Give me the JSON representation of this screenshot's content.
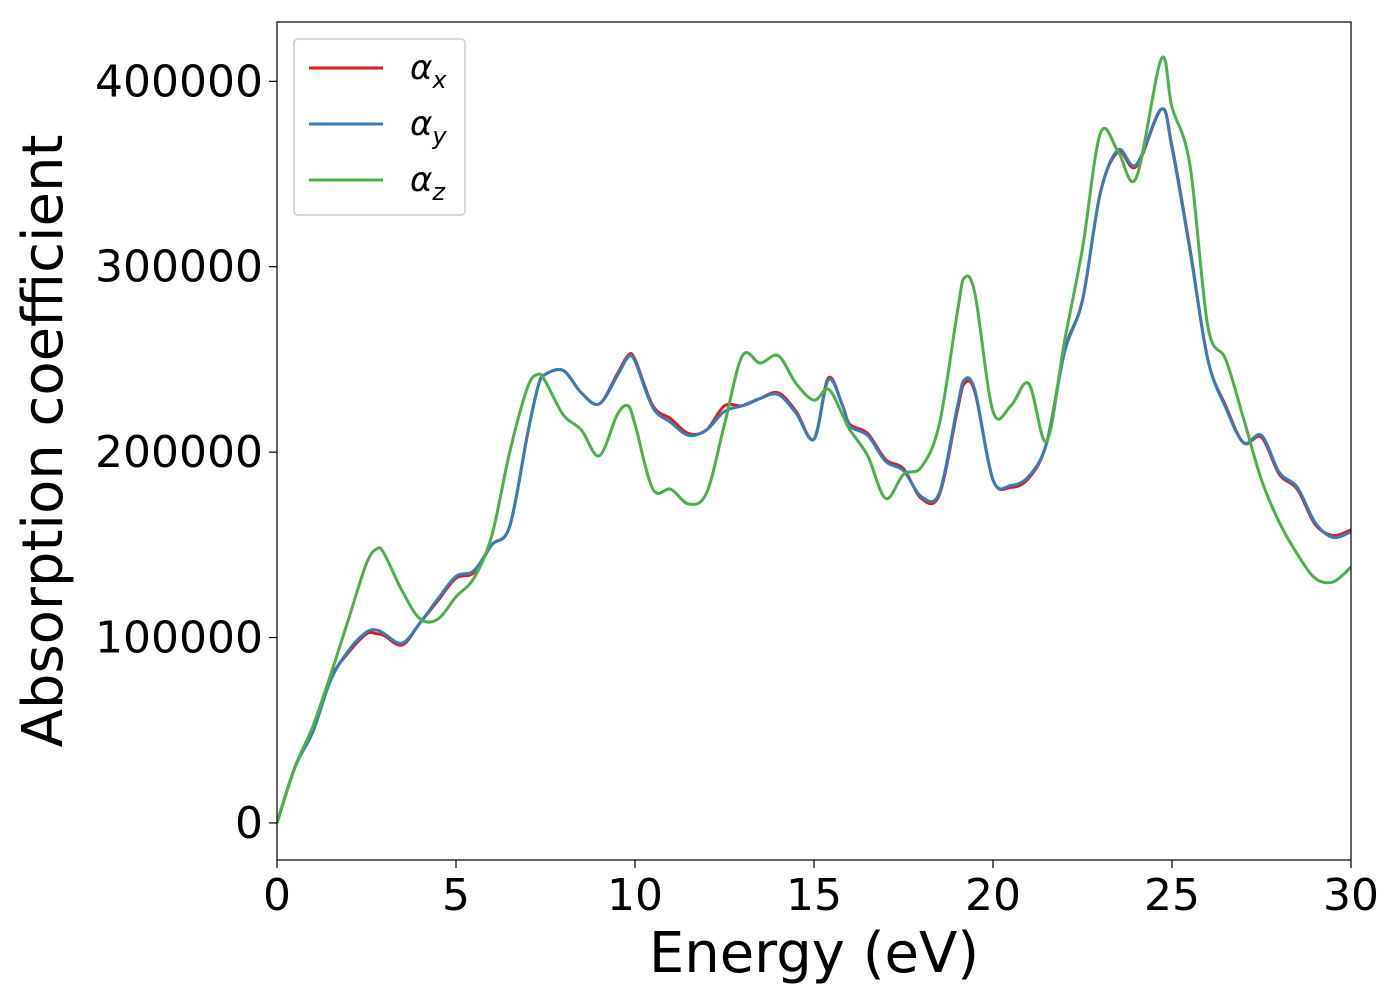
{
  "chart_data": {
    "type": "line",
    "title": "",
    "xlabel": "Energy (eV)",
    "ylabel": "Absorption coefficient",
    "xlim": [
      0,
      30
    ],
    "ylim": [
      -20000,
      432000
    ],
    "xticks": [
      0,
      5,
      10,
      15,
      20,
      25,
      30
    ],
    "yticks": [
      0,
      100000,
      200000,
      300000,
      400000
    ],
    "xtick_labels": [
      "0",
      "5",
      "10",
      "15",
      "20",
      "25",
      "30"
    ],
    "ytick_labels": [
      "0",
      "100000",
      "200000",
      "300000",
      "400000"
    ],
    "grid": false,
    "legend_position": "top-left",
    "x": [
      0,
      0.5,
      1,
      1.5,
      2,
      2.5,
      2.8,
      3,
      3.5,
      4,
      4.5,
      5,
      5.5,
      6,
      6.5,
      7,
      7.3,
      7.5,
      8,
      8.5,
      9,
      9.5,
      9.8,
      10,
      10.5,
      11,
      11.5,
      12,
      12.5,
      13,
      13.5,
      14,
      14.5,
      15,
      15.4,
      15.8,
      16,
      16.5,
      17,
      17.5,
      18,
      18.5,
      19,
      19.2,
      19.5,
      20,
      20.5,
      21,
      21.5,
      22,
      22.5,
      23,
      23.5,
      24,
      24.7,
      25,
      25.5,
      26,
      26.5,
      27,
      27.5,
      28,
      28.5,
      29,
      29.5,
      30
    ],
    "series": [
      {
        "name": "α",
        "subscript": "x",
        "color": "#e41a1c",
        "values": [
          0,
          30000,
          50000,
          78000,
          92000,
          102000,
          102000,
          101000,
          96000,
          108000,
          120000,
          132000,
          135000,
          150000,
          160000,
          210000,
          236000,
          242000,
          244000,
          232000,
          226000,
          242000,
          252000,
          250000,
          225000,
          218000,
          210000,
          212000,
          225000,
          225000,
          229000,
          232000,
          222000,
          207000,
          240000,
          225000,
          215000,
          210000,
          196000,
          191000,
          175000,
          177000,
          222000,
          237000,
          232000,
          185000,
          181000,
          186000,
          205000,
          255000,
          282000,
          340000,
          362000,
          354000,
          385000,
          365000,
          310000,
          250000,
          225000,
          205000,
          208000,
          188000,
          180000,
          161000,
          155000,
          158000
        ]
      },
      {
        "name": "α",
        "subscript": "y",
        "color": "#377eb8",
        "values": [
          0,
          30000,
          49000,
          77000,
          93000,
          103000,
          104000,
          102000,
          97000,
          108000,
          121000,
          133000,
          136000,
          150000,
          160000,
          210000,
          236000,
          242000,
          244000,
          232000,
          226000,
          241000,
          251000,
          249000,
          224000,
          216000,
          209000,
          212000,
          222000,
          225000,
          229000,
          231000,
          221000,
          207000,
          239000,
          225000,
          214000,
          209000,
          195000,
          190000,
          176000,
          178000,
          224000,
          239000,
          233000,
          185000,
          182000,
          187000,
          205000,
          254000,
          282000,
          340000,
          363000,
          355000,
          385000,
          364000,
          309000,
          250000,
          224000,
          205000,
          209000,
          189000,
          181000,
          162000,
          154000,
          157000
        ]
      },
      {
        "name": "α",
        "subscript": "z",
        "color": "#4daf4a",
        "values": [
          0,
          30000,
          52000,
          80000,
          110000,
          140000,
          148000,
          145000,
          125000,
          110000,
          110000,
          122000,
          132000,
          155000,
          200000,
          235000,
          242000,
          238000,
          220000,
          212000,
          198000,
          220000,
          225000,
          215000,
          180000,
          180000,
          172000,
          178000,
          215000,
          252000,
          248000,
          252000,
          237000,
          228000,
          234000,
          220000,
          212000,
          198000,
          175000,
          188000,
          192000,
          215000,
          275000,
          294000,
          285000,
          222000,
          225000,
          237000,
          206000,
          260000,
          310000,
          372000,
          362000,
          348000,
          412000,
          386000,
          355000,
          268000,
          250000,
          218000,
          185000,
          162000,
          145000,
          132000,
          130000,
          138000
        ]
      }
    ]
  }
}
